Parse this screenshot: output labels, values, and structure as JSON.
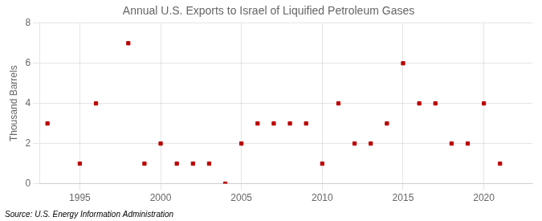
{
  "chart_data": {
    "type": "scatter",
    "title": "Annual U.S. Exports to Israel of Liquified Petroleum Gases",
    "ylabel": "Thousand Barrels",
    "source": "Source: U.S. Energy Information Administration",
    "x": [
      1993,
      1995,
      1996,
      1998,
      1999,
      2000,
      2001,
      2002,
      2003,
      2004,
      2005,
      2006,
      2007,
      2008,
      2009,
      2010,
      2011,
      2012,
      2013,
      2014,
      2015,
      2016,
      2017,
      2018,
      2019,
      2020,
      2021
    ],
    "values": [
      3,
      1,
      4,
      7,
      1,
      2,
      1,
      1,
      1,
      0,
      2,
      3,
      3,
      3,
      3,
      1,
      4,
      2,
      2,
      3,
      6,
      4,
      4,
      2,
      2,
      4,
      1
    ],
    "color": "#bb0000",
    "marker": "square",
    "xlim": [
      1992.5,
      2023
    ],
    "xticks": [
      1995,
      2000,
      2005,
      2010,
      2015,
      2020
    ],
    "ylim": [
      0,
      8
    ],
    "yticks": [
      0,
      2,
      4,
      6,
      8
    ],
    "grid": true
  }
}
